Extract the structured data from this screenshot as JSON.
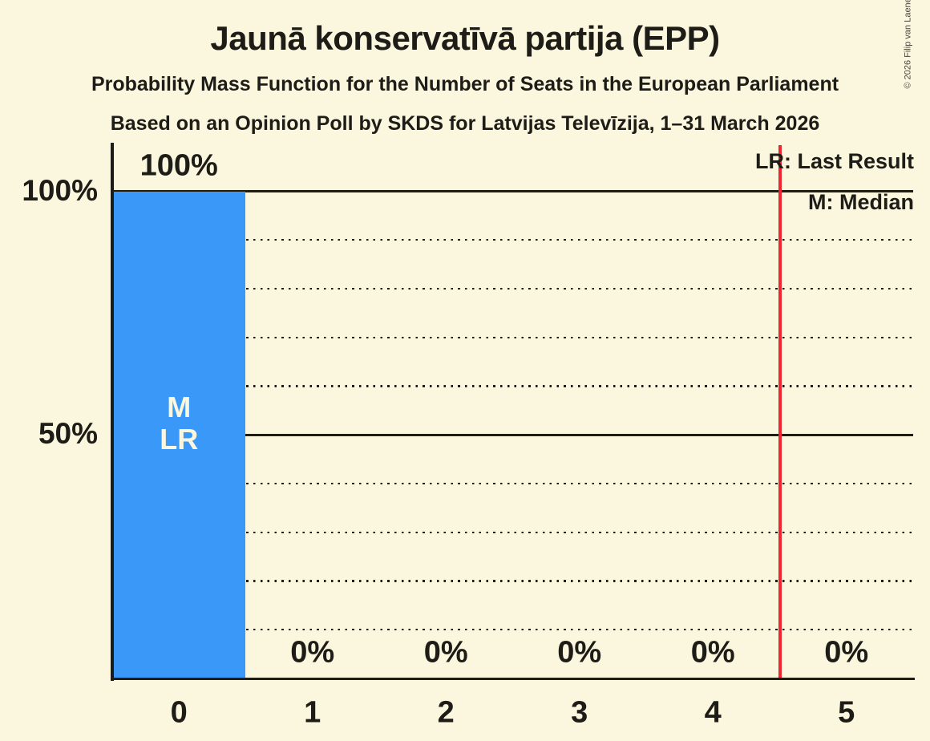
{
  "header": {
    "title": "Jaunā konservatīvā partija (EPP)",
    "subtitle1": "Probability Mass Function for the Number of Seats in the European Parliament",
    "subtitle2": "Based on an Opinion Poll by SKDS for Latvijas Televīzija, 1–31 March 2026"
  },
  "copyright": "© 2026 Filip van Laenen",
  "legend": {
    "last_result": "LR: Last Result",
    "median": "M: Median"
  },
  "colors": {
    "background": "#fbf6de",
    "text": "#1e1c16",
    "bar": "#3a99f8",
    "last_result_line": "#ef2530"
  },
  "chart_data": {
    "type": "bar",
    "title": "Jaunā konservatīvā partija (EPP)",
    "categories": [
      "0",
      "1",
      "2",
      "3",
      "4",
      "5"
    ],
    "values": [
      100,
      0,
      0,
      0,
      0,
      0
    ],
    "value_labels": [
      "100%",
      "0%",
      "0%",
      "0%",
      "0%",
      "0%"
    ],
    "y_ticks": [
      {
        "value": 100,
        "label": "100%"
      },
      {
        "value": 50,
        "label": "50%"
      }
    ],
    "solid_gridlines": [
      100,
      50
    ],
    "dotted_gridlines": [
      90,
      80,
      70,
      60,
      40,
      30,
      20,
      10
    ],
    "ylim": [
      0,
      109
    ],
    "grid": "horizontal",
    "legend_position": "top-right",
    "median_bar_index": 0,
    "median_bar_annotation_lines": [
      "M",
      "LR"
    ],
    "last_result_line_x": 4.5
  }
}
